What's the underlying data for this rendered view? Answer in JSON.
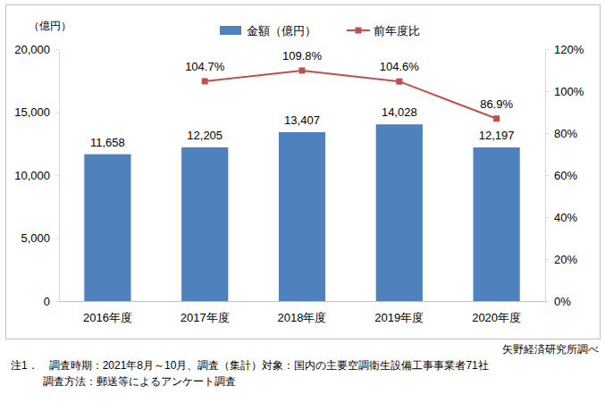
{
  "chart_data": {
    "type": "bar",
    "ylabel": "（億円）",
    "categories": [
      "2016年度",
      "2017年度",
      "2018年度",
      "2019年度",
      "2020年度"
    ],
    "series": [
      {
        "name": "金額（億円）",
        "type": "bar",
        "color": "#4f81bd",
        "values": [
          11658,
          12205,
          13407,
          14028,
          12197
        ],
        "value_labels": [
          "11,658",
          "12,205",
          "13,407",
          "14,028",
          "12,197"
        ]
      },
      {
        "name": "前年度比",
        "type": "line",
        "axis": "y2",
        "color": "#c0504d",
        "marker": "square",
        "values": [
          null,
          104.7,
          109.8,
          104.6,
          86.9
        ],
        "value_labels": [
          null,
          "104.7%",
          "109.8%",
          "104.6%",
          "86.9%"
        ]
      }
    ],
    "ylim": [
      0,
      20000
    ],
    "yticks": [
      0,
      {
        "value": 5000,
        "label": "5,000"
      },
      {
        "value": 10000,
        "label": "10,000"
      },
      {
        "value": 15000,
        "label": "15,000"
      },
      {
        "value": 20000,
        "label": "20,000"
      }
    ],
    "y2lim": [
      0,
      120
    ],
    "y2ticks": [
      {
        "value": 0,
        "label": "0%"
      },
      {
        "value": 20,
        "label": "20%"
      },
      {
        "value": 40,
        "label": "40%"
      },
      {
        "value": 60,
        "label": "60%"
      },
      {
        "value": 80,
        "label": "80%"
      },
      {
        "value": 100,
        "label": "100%"
      },
      {
        "value": 120,
        "label": "120%"
      }
    ],
    "grid": false,
    "legend": "top",
    "data_labels": true,
    "annotations": [
      "矢野経済研究所調べ",
      "注1．　調査時期：2021年8月～10月、調査（集計）対象：国内の主要空調衛生設備工事事業者71社",
      "　　　調査方法：郵送等によるアンケート調査"
    ]
  }
}
